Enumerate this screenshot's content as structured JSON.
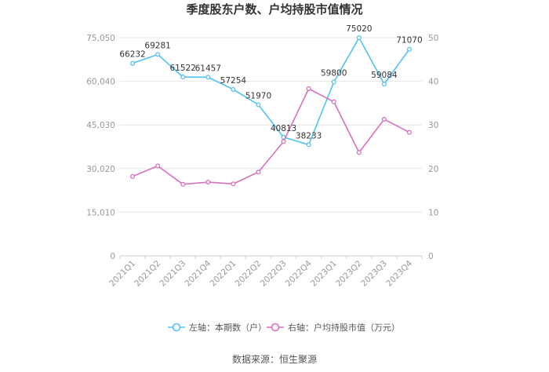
{
  "chart_data": {
    "type": "line",
    "title": "季度股东户数、户均持股市值情况",
    "categories": [
      "2021Q1",
      "2021Q2",
      "2021Q3",
      "2021Q4",
      "2022Q1",
      "2022Q2",
      "2022Q3",
      "2022Q4",
      "2023Q1",
      "2023Q2",
      "2023Q3",
      "2023Q4"
    ],
    "series": [
      {
        "name": "左轴：本期数（户）",
        "axis": "left",
        "color": "#4fc3ee",
        "values": [
          66232,
          69281,
          61522,
          61457,
          57254,
          51970,
          40813,
          38233,
          59800,
          75020,
          59084,
          71070
        ],
        "labels": [
          "66232",
          "69281",
          "61522",
          "61457",
          "57254",
          "51970",
          "40813",
          "38233",
          "59800",
          "75020",
          "59084",
          "71070"
        ]
      },
      {
        "name": "右轴：户均持股市值（万元）",
        "axis": "right",
        "color": "#d86fbd",
        "values": [
          18.2,
          20.6,
          16.4,
          16.9,
          16.5,
          19.2,
          26.2,
          38.3,
          35.3,
          23.7,
          31.3,
          28.3
        ]
      }
    ],
    "left_axis": {
      "ylim": [
        0,
        75050
      ],
      "ticks": [
        "0",
        "15,010",
        "30,020",
        "45,030",
        "60,040",
        "75,050"
      ]
    },
    "right_axis": {
      "ylim": [
        0,
        50
      ],
      "ticks": [
        "0",
        "10",
        "20",
        "30",
        "40",
        "50"
      ]
    },
    "grid": true,
    "legend_position": "bottom"
  },
  "source": "数据来源：恒生聚源"
}
